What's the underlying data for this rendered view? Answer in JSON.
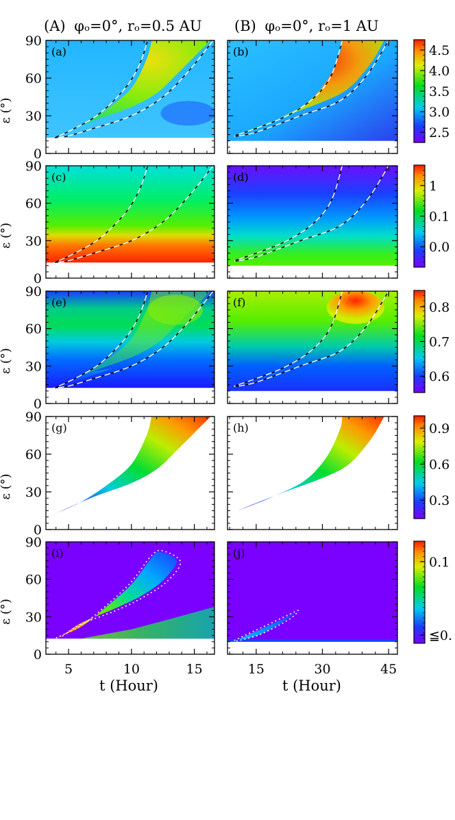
{
  "columns": [
    {
      "label_prefix": "(A)",
      "label_rest": "φₒ=0°, rₒ=0.5 AU"
    },
    {
      "label_prefix": "(B)",
      "label_rest": "φₒ=0°, rₒ=1 AU"
    }
  ],
  "ylabel": "ε (°)",
  "xlabel": "t (Hour)",
  "panels": [
    {
      "id": "a",
      "label": "(a)"
    },
    {
      "id": "b",
      "label": "(b)"
    },
    {
      "id": "c",
      "label": "(c)"
    },
    {
      "id": "d",
      "label": "(d)"
    },
    {
      "id": "e",
      "label": "(e)"
    },
    {
      "id": "f",
      "label": "(f)"
    },
    {
      "id": "g",
      "label": "(g)"
    },
    {
      "id": "h",
      "label": "(h)"
    },
    {
      "id": "i",
      "label": "(i)"
    },
    {
      "id": "j",
      "label": "(j)"
    }
  ],
  "chart_data": {
    "type": "heatmap",
    "colormap": "rainbow (violet → blue → cyan → green → yellow → red)",
    "y_ticks": [
      "0",
      "30",
      "60",
      "90"
    ],
    "ylim": [
      0,
      90
    ],
    "x_axes": [
      {
        "column": "A",
        "xlim": [
          3.2,
          16.6
        ],
        "ticks": [
          5,
          10,
          15
        ],
        "tick_labels": [
          "5",
          "10",
          "15"
        ]
      },
      {
        "column": "B",
        "xlim": [
          8.5,
          47
        ],
        "ticks": [
          15,
          30,
          45
        ],
        "tick_labels": [
          "15",
          "30",
          "45"
        ]
      }
    ],
    "colorbars": [
      {
        "row": 1,
        "tick_labels": [
          "4.5",
          "4.0",
          "3.5",
          "3.0",
          "2.5"
        ],
        "range": [
          2.3,
          4.9
        ]
      },
      {
        "row": 2,
        "tick_labels": [
          "1",
          "0.1",
          "0.0"
        ],
        "range": [
          0.005,
          3.0
        ],
        "scale": "log"
      },
      {
        "row": 3,
        "tick_labels": [
          "0.8",
          "0.7",
          "0.6"
        ],
        "range": [
          0.58,
          0.85
        ]
      },
      {
        "row": 4,
        "tick_labels": [
          "0.9",
          "0.6",
          "0.3"
        ],
        "range": [
          0.2,
          1.0
        ]
      },
      {
        "row": 5,
        "tick_labels": [
          "0.1",
          "≦0."
        ],
        "range": [
          0.0,
          0.2
        ]
      }
    ],
    "curves": {
      "A": {
        "steep": [
          [
            3.9,
            12.5
          ],
          [
            5.5,
            20
          ],
          [
            7.5,
            32
          ],
          [
            9.5,
            52
          ],
          [
            10.6,
            70
          ],
          [
            11.3,
            90
          ]
        ],
        "shallow": [
          [
            3.8,
            12.5
          ],
          [
            5.0,
            14
          ],
          [
            7,
            20
          ],
          [
            10,
            30
          ],
          [
            12.5,
            45
          ],
          [
            14.5,
            65
          ],
          [
            16.5,
            90
          ]
        ],
        "wedge_upper": [
          [
            3.9,
            12.5
          ],
          [
            6,
            22
          ],
          [
            8,
            35
          ],
          [
            10,
            52
          ],
          [
            11.2,
            75
          ],
          [
            11.6,
            90
          ]
        ],
        "wedge_lower": [
          [
            3.9,
            12.5
          ],
          [
            7,
            26
          ],
          [
            10,
            37
          ],
          [
            12,
            48
          ],
          [
            13.5,
            62
          ],
          [
            15.3,
            80
          ],
          [
            16.3,
            90
          ]
        ]
      },
      "B": {
        "steep": [
          [
            10,
            14
          ],
          [
            15,
            20
          ],
          [
            22,
            30
          ],
          [
            28,
            44
          ],
          [
            32,
            62
          ],
          [
            34.5,
            90
          ]
        ],
        "shallow": [
          [
            10,
            13.5
          ],
          [
            15,
            17
          ],
          [
            25,
            30
          ],
          [
            34,
            42
          ],
          [
            40,
            62
          ],
          [
            45,
            90
          ]
        ],
        "wedge_upper": [
          [
            10,
            14
          ],
          [
            18,
            25
          ],
          [
            26,
            39
          ],
          [
            31,
            58
          ],
          [
            34,
            80
          ],
          [
            34.5,
            90
          ]
        ],
        "wedge_lower": [
          [
            10,
            14
          ],
          [
            20,
            28
          ],
          [
            30,
            41
          ],
          [
            36,
            52
          ],
          [
            41,
            72
          ],
          [
            44,
            90
          ]
        ]
      }
    }
  }
}
